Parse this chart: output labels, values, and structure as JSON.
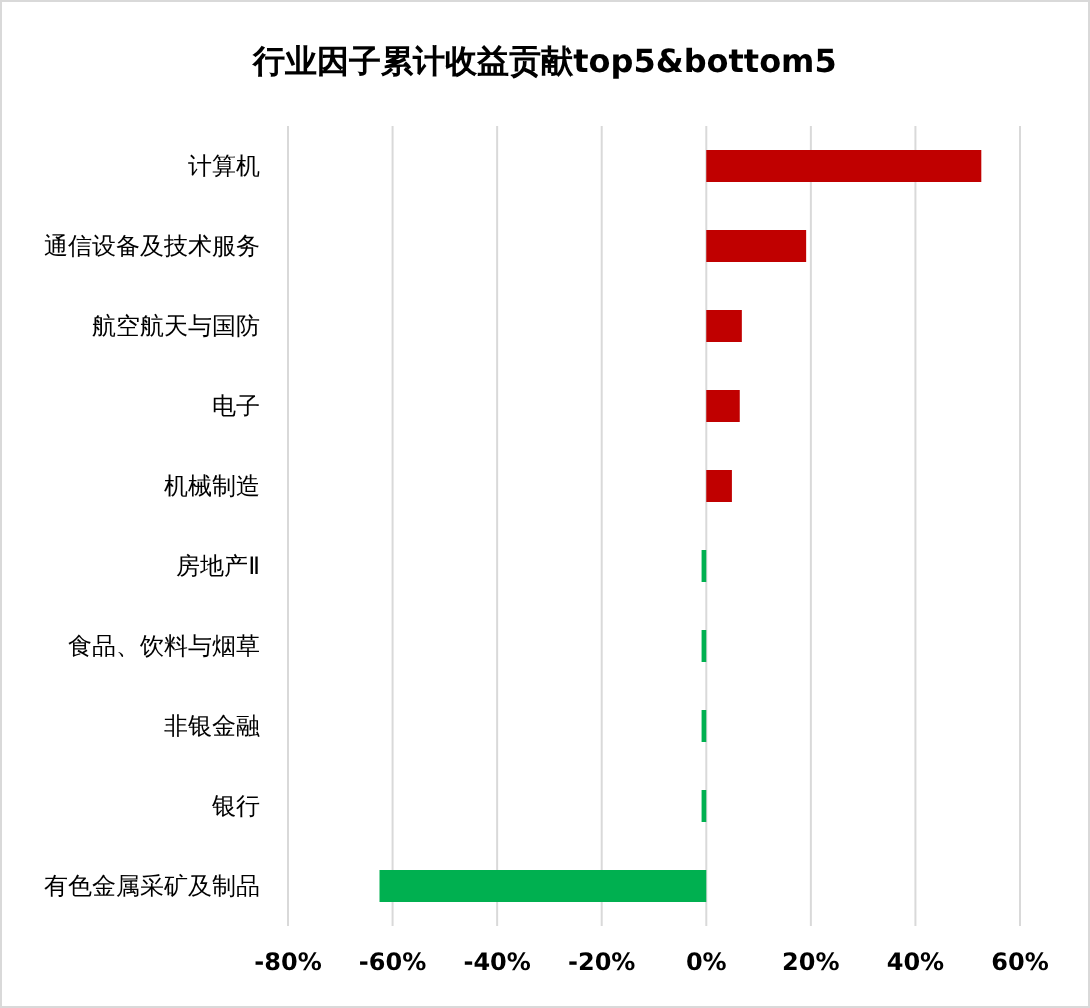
{
  "chart_data": {
    "type": "bar",
    "orientation": "horizontal",
    "title": "行业因子累计收益贡献top5&bottom5",
    "categories": [
      "计算机",
      "通信设备及技术服务",
      "航空航天与国防",
      "电子",
      "机械制造",
      "房地产Ⅱ",
      "食品、饮料与烟草",
      "非银金融",
      "银行",
      "有色金属采矿及制品"
    ],
    "values": [
      52.6,
      19.1,
      6.8,
      6.4,
      4.9,
      -0.9,
      -0.9,
      -0.9,
      -0.9,
      -62.5
    ],
    "colors": [
      "#c00000",
      "#c00000",
      "#c00000",
      "#c00000",
      "#c00000",
      "#00b050",
      "#00b050",
      "#00b050",
      "#00b050",
      "#00b050"
    ],
    "xlim": [
      -80,
      60
    ],
    "xticks": [
      {
        "value": -80,
        "label": "-80%"
      },
      {
        "value": -60,
        "label": "-60%"
      },
      {
        "value": -40,
        "label": "-40%"
      },
      {
        "value": -20,
        "label": "-20%"
      },
      {
        "value": 0,
        "label": "0%"
      },
      {
        "value": 20,
        "label": "20%"
      },
      {
        "value": 40,
        "label": "40%"
      },
      {
        "value": 60,
        "label": "60%"
      }
    ],
    "grid": "x"
  }
}
